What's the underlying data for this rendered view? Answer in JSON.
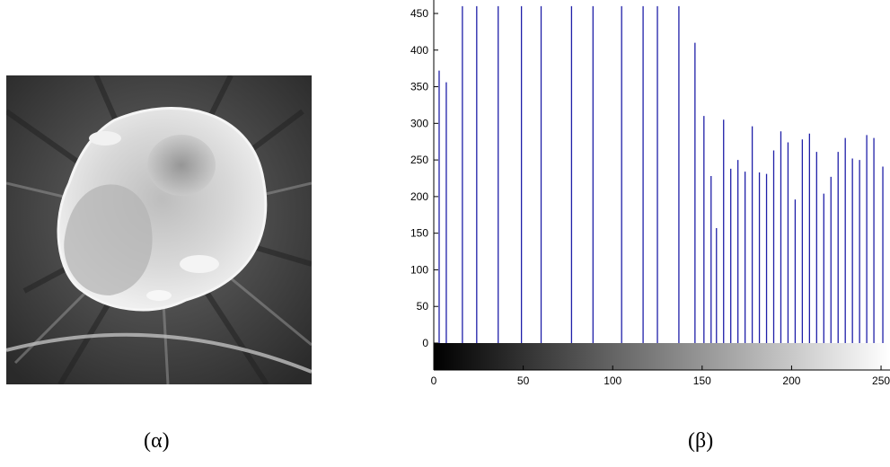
{
  "captions": {
    "left": "(α)",
    "right": "(β)"
  },
  "chart_data": {
    "type": "bar",
    "style": "stem-histogram",
    "colorbar": "grayscale",
    "xlim": [
      0,
      255
    ],
    "ylim": [
      -40,
      455
    ],
    "yticks": [
      0,
      50,
      100,
      150,
      200,
      250,
      300,
      350,
      400,
      450
    ],
    "xticks": [
      0,
      50,
      100,
      150,
      200,
      250
    ],
    "xtick_labels": [
      "0",
      "50",
      "100",
      "150",
      "200",
      "250"
    ],
    "bar_color": "#1f1fa8",
    "x": [
      3,
      7,
      16,
      24,
      36,
      49,
      60,
      77,
      89,
      105,
      117,
      125,
      137,
      146,
      151,
      155,
      158,
      162,
      166,
      170,
      174,
      178,
      182,
      186,
      190,
      194,
      198,
      202,
      206,
      210,
      214,
      218,
      222,
      226,
      230,
      234,
      238,
      242,
      246,
      251
    ],
    "values": [
      372,
      356,
      460,
      460,
      460,
      460,
      460,
      460,
      460,
      460,
      460,
      460,
      460,
      410,
      310,
      228,
      157,
      305,
      238,
      250,
      234,
      296,
      233,
      231,
      263,
      289,
      274,
      196,
      278,
      286,
      261,
      204,
      227,
      261,
      280,
      252,
      250,
      284,
      280,
      241
    ]
  }
}
